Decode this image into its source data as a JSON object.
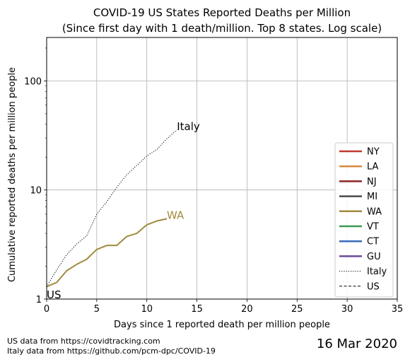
{
  "chart_data": {
    "type": "line",
    "title": "COVID-19 US States Reported Deaths per Million",
    "subtitle": "(Since first day with 1 death/million. Top 8 states. Log scale)",
    "xlabel": "Days since 1 reported death per million people",
    "ylabel": "Cumulative reported deaths per million people",
    "xlim": [
      0,
      35
    ],
    "ylim": [
      1,
      250
    ],
    "yscale": "log",
    "grid": true,
    "legend_position": "right",
    "x_ticks": [
      0,
      5,
      10,
      15,
      20,
      25,
      30,
      35
    ],
    "y_ticks": [
      1,
      10,
      100
    ],
    "series": [
      {
        "name": "NY",
        "color": "#c0392b",
        "style": "solid",
        "x": [],
        "y": []
      },
      {
        "name": "LA",
        "color": "#d98a3f",
        "style": "solid",
        "x": [],
        "y": []
      },
      {
        "name": "NJ",
        "color": "#8e2323",
        "style": "solid",
        "x": [],
        "y": []
      },
      {
        "name": "MI",
        "color": "#4a4a4a",
        "style": "solid",
        "x": [],
        "y": []
      },
      {
        "name": "WA",
        "color": "#a08a3c",
        "style": "solid",
        "x": [
          0,
          1,
          2,
          3,
          4,
          5,
          6,
          7,
          8,
          9,
          10,
          11,
          12
        ],
        "y": [
          1.3,
          1.42,
          1.82,
          2.08,
          2.32,
          2.85,
          3.1,
          3.1,
          3.75,
          4.0,
          4.8,
          5.2,
          5.45
        ]
      },
      {
        "name": "VT",
        "color": "#3a9a50",
        "style": "solid",
        "x": [],
        "y": []
      },
      {
        "name": "CT",
        "color": "#3a6ab8",
        "style": "solid",
        "x": [],
        "y": []
      },
      {
        "name": "GU",
        "color": "#6a4a9a",
        "style": "solid",
        "x": [],
        "y": []
      },
      {
        "name": "Italy",
        "color": "#000000",
        "style": "dotted",
        "x": [
          0,
          1,
          2,
          3,
          4,
          5,
          6,
          7,
          8,
          9,
          10,
          11,
          12,
          13
        ],
        "y": [
          1.3,
          1.85,
          2.55,
          3.2,
          3.8,
          6.0,
          7.8,
          10.6,
          13.8,
          16.8,
          20.5,
          23.5,
          29.5,
          35.5
        ]
      },
      {
        "name": "US",
        "color": "#000000",
        "style": "dashed",
        "x": [
          0
        ],
        "y": [
          1
        ]
      }
    ],
    "annotations": [
      {
        "text": "Italy",
        "x": 13,
        "y": 35.5,
        "color": "#000000"
      },
      {
        "text": "WA",
        "x": 12,
        "y": 5.45,
        "color": "#a08a3c"
      },
      {
        "text": "US",
        "x": 0,
        "y": 1,
        "color": "#000000"
      }
    ]
  },
  "footer": {
    "source_us": "US data from https://covidtracking.com",
    "source_italy": "Italy data from https://github.com/pcm-dpc/COVID-19",
    "date": "16 Mar 2020"
  }
}
